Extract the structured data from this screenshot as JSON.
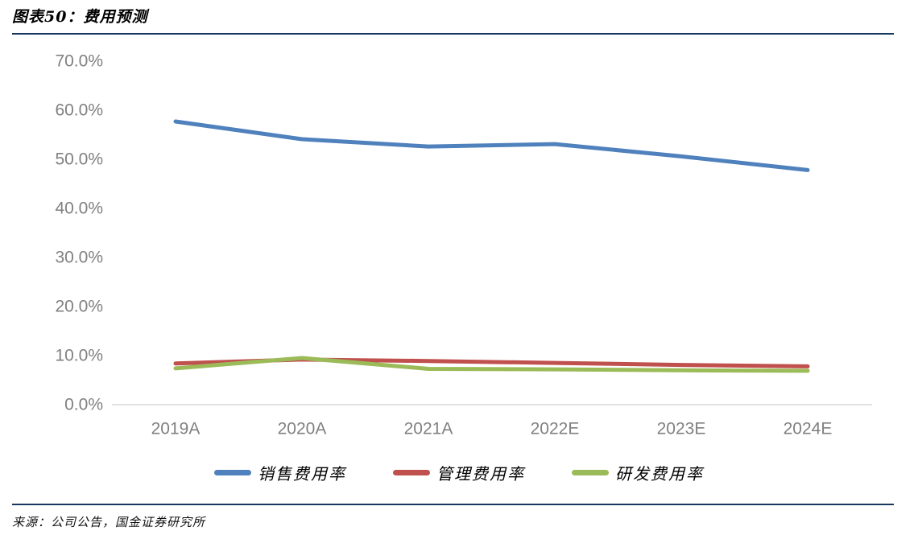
{
  "figure": {
    "title": "图表50：费用预测",
    "source": "来源：公司公告，国金证券研究所",
    "rule_color": "#17375e"
  },
  "chart_data": {
    "type": "line",
    "title": "费用预测",
    "categories": [
      "2019A",
      "2020A",
      "2021A",
      "2022E",
      "2023E",
      "2024E"
    ],
    "series": [
      {
        "name": "销售费用率",
        "color": "#4F81BD",
        "values": [
          57.7,
          54.1,
          52.6,
          53.1,
          50.6,
          47.8
        ]
      },
      {
        "name": "管理费用率",
        "color": "#C0504D",
        "values": [
          8.4,
          9.2,
          8.9,
          8.5,
          8.1,
          7.8
        ]
      },
      {
        "name": "研发费用率",
        "color": "#9BBB59",
        "values": [
          7.4,
          9.5,
          7.3,
          7.2,
          7.0,
          6.9
        ]
      }
    ],
    "xlabel": "",
    "ylabel": "",
    "ylim": [
      0,
      70
    ],
    "ytick_step": 10,
    "ytick_format": "percent_one_decimal",
    "ytick_labels": [
      "0.0%",
      "10.0%",
      "20.0%",
      "30.0%",
      "40.0%",
      "50.0%",
      "60.0%",
      "70.0%"
    ],
    "grid": false,
    "legend_position": "bottom",
    "axis_color": "#d9d9d9",
    "tick_label_color": "#808080"
  }
}
